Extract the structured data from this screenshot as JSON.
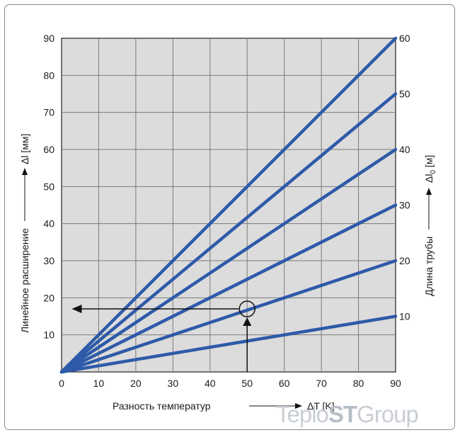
{
  "chart_data": {
    "type": "line",
    "x_label": "Разность температур",
    "x_unit": "ΔT [K]",
    "y_left_label": "Линейное расширение",
    "y_left_unit": "Δl [мм]",
    "y_right_label": "Длина трубы",
    "y_right_unit_base": "Δl",
    "y_right_unit_sub": "0",
    "y_right_unit_rest": " [м]",
    "xlim": [
      0,
      90
    ],
    "ylim": [
      0,
      90
    ],
    "right_ylim": [
      0,
      60
    ],
    "x_ticks": [
      0,
      10,
      20,
      30,
      40,
      50,
      60,
      70,
      80,
      90
    ],
    "y_ticks": [
      10,
      20,
      30,
      40,
      50,
      60,
      70,
      80,
      90
    ],
    "right_ticks": [
      10,
      20,
      30,
      40,
      50,
      60
    ],
    "grid": true,
    "line_color": "#2e5aa8",
    "grid_color": "#7a7a7a",
    "plot_bg": "#dcdcdc",
    "series": [
      {
        "name": "10",
        "x": [
          0,
          90
        ],
        "y": [
          0,
          15
        ]
      },
      {
        "name": "20",
        "x": [
          0,
          90
        ],
        "y": [
          0,
          30
        ]
      },
      {
        "name": "30",
        "x": [
          0,
          90
        ],
        "y": [
          0,
          45
        ]
      },
      {
        "name": "40",
        "x": [
          0,
          90
        ],
        "y": [
          0,
          60
        ]
      },
      {
        "name": "50",
        "x": [
          0,
          90
        ],
        "y": [
          0,
          75
        ]
      },
      {
        "name": "60",
        "x": [
          0,
          90
        ],
        "y": [
          0,
          90
        ]
      }
    ],
    "example": {
      "x": 50,
      "y": 17,
      "length": 20
    }
  },
  "watermark": {
    "part1": "Teplo",
    "part2": "ST",
    "part3": "Group"
  }
}
